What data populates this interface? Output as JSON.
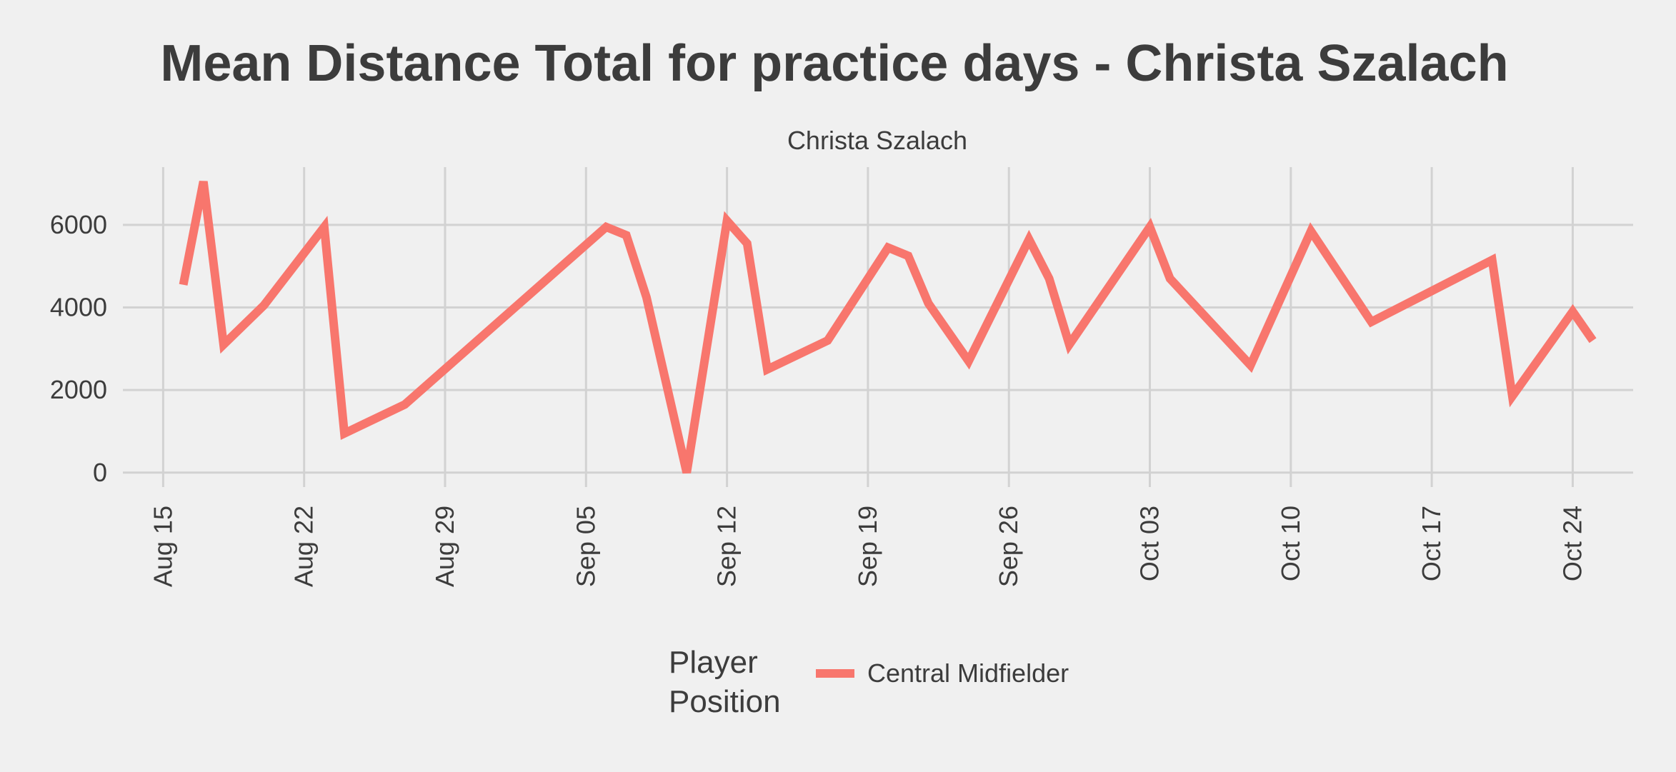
{
  "chart_data": {
    "type": "line",
    "title": "Mean Distance Total for practice days -  Christa Szalach",
    "facet_label": "Christa Szalach",
    "xlabel": "",
    "ylabel": "",
    "x_type": "date",
    "xlim": [
      "2022-08-13",
      "2022-10-27"
    ],
    "ylim": [
      -350,
      7400
    ],
    "x_ticks": [
      {
        "date": "2022-08-15",
        "label": "Aug 15"
      },
      {
        "date": "2022-08-22",
        "label": "Aug 22"
      },
      {
        "date": "2022-08-29",
        "label": "Aug 29"
      },
      {
        "date": "2022-09-05",
        "label": "Sep 05"
      },
      {
        "date": "2022-09-12",
        "label": "Sep 12"
      },
      {
        "date": "2022-09-19",
        "label": "Sep 19"
      },
      {
        "date": "2022-09-26",
        "label": "Sep 26"
      },
      {
        "date": "2022-10-03",
        "label": "Oct 03"
      },
      {
        "date": "2022-10-10",
        "label": "Oct 10"
      },
      {
        "date": "2022-10-17",
        "label": "Oct 17"
      },
      {
        "date": "2022-10-24",
        "label": "Oct 24"
      }
    ],
    "y_ticks": [
      {
        "value": 0,
        "label": "0"
      },
      {
        "value": 2000,
        "label": "2000"
      },
      {
        "value": 4000,
        "label": "4000"
      },
      {
        "value": 6000,
        "label": "6000"
      }
    ],
    "grid": true,
    "legend": {
      "title": "Player\nPosition",
      "position": "bottom"
    },
    "series": [
      {
        "name": "Central Midfielder",
        "color": "#F8766D",
        "points": [
          {
            "x": "2022-08-16",
            "y": 4550
          },
          {
            "x": "2022-08-17",
            "y": 7050
          },
          {
            "x": "2022-08-18",
            "y": 3100
          },
          {
            "x": "2022-08-20",
            "y": 4050
          },
          {
            "x": "2022-08-23",
            "y": 5950
          },
          {
            "x": "2022-08-24",
            "y": 950
          },
          {
            "x": "2022-08-27",
            "y": 1650
          },
          {
            "x": "2022-09-06",
            "y": 5950
          },
          {
            "x": "2022-09-07",
            "y": 5750
          },
          {
            "x": "2022-09-08",
            "y": 4250
          },
          {
            "x": "2022-09-10",
            "y": 0
          },
          {
            "x": "2022-09-12",
            "y": 6100
          },
          {
            "x": "2022-09-13",
            "y": 5550
          },
          {
            "x": "2022-09-14",
            "y": 2500
          },
          {
            "x": "2022-09-17",
            "y": 3200
          },
          {
            "x": "2022-09-20",
            "y": 5450
          },
          {
            "x": "2022-09-21",
            "y": 5250
          },
          {
            "x": "2022-09-22",
            "y": 4100
          },
          {
            "x": "2022-09-24",
            "y": 2700
          },
          {
            "x": "2022-09-27",
            "y": 5650
          },
          {
            "x": "2022-09-28",
            "y": 4700
          },
          {
            "x": "2022-09-29",
            "y": 3100
          },
          {
            "x": "2022-10-03",
            "y": 5950
          },
          {
            "x": "2022-10-04",
            "y": 4700
          },
          {
            "x": "2022-10-08",
            "y": 2600
          },
          {
            "x": "2022-10-11",
            "y": 5850
          },
          {
            "x": "2022-10-14",
            "y": 3650
          },
          {
            "x": "2022-10-20",
            "y": 5150
          },
          {
            "x": "2022-10-21",
            "y": 1850
          },
          {
            "x": "2022-10-24",
            "y": 3900
          },
          {
            "x": "2022-10-25",
            "y": 3200
          }
        ]
      }
    ]
  }
}
